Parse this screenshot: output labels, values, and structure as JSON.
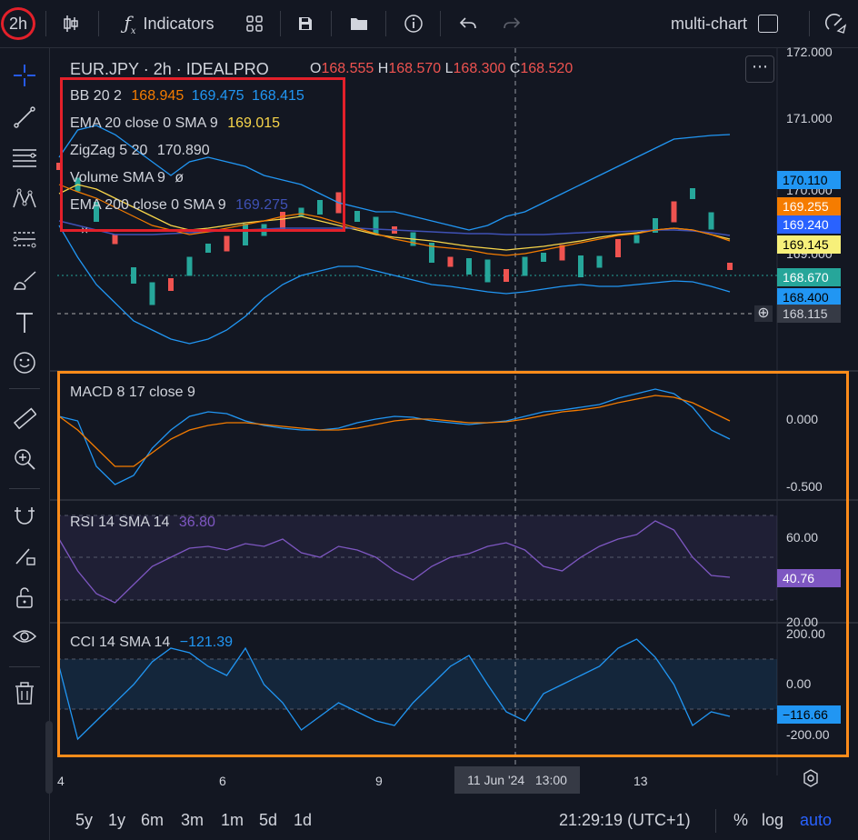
{
  "topbar": {
    "interval": "2h",
    "indicators_label": "Indicators",
    "multichart_label": "multi-chart"
  },
  "main": {
    "symbol_title": "EUR.JPY · 2h · IDEALPRO",
    "ohlc": {
      "o_label": "O",
      "o": "168.555",
      "h_label": "H",
      "h": "168.570",
      "l_label": "L",
      "l": "168.300",
      "c_label": "C",
      "c": "168.520"
    },
    "indicators": {
      "bb": {
        "label": "BB 20 2",
        "v1": "168.945",
        "v2": "169.475",
        "v3": "168.415"
      },
      "ema20": {
        "label": "EMA 20 close 0 SMA 9",
        "v": "169.015"
      },
      "zigzag": {
        "label": "ZigZag 5 20",
        "v": "170.890"
      },
      "volume": {
        "label": "Volume SMA 9",
        "v": "ø"
      },
      "ema200": {
        "label": "EMA 200 close 0 SMA 9",
        "v": "169.275"
      }
    },
    "price_axis": [
      "172.000",
      "171.000",
      "170.000",
      "169.000"
    ],
    "tags": {
      "t1": "170.110",
      "t2": "169.255",
      "t3": "169.240",
      "t4": "169.145",
      "t5": "168.670",
      "t6": "168.400",
      "crosshair": "168.115"
    }
  },
  "macd": {
    "label": "MACD 8 17 close 9",
    "axis": [
      "0.000",
      "-0.500"
    ]
  },
  "rsi": {
    "label": "RSI 14 SMA 14",
    "value": "36.80",
    "axis": [
      "60.00",
      "20.00"
    ],
    "tag": "40.76"
  },
  "cci": {
    "label": "CCI 14 SMA 14",
    "value": "−121.39",
    "axis": [
      "200.00",
      "0.00",
      "-200.00"
    ],
    "tag": "−116.66"
  },
  "time_axis": {
    "labels": [
      "4",
      "6",
      "9",
      "13"
    ],
    "crosshair": "11 Jun '24   13:00"
  },
  "bottombar": {
    "ranges": [
      "5y",
      "1y",
      "6m",
      "3m",
      "1m",
      "5d",
      "1d"
    ],
    "clock": "21:29:19 (UTC+1)",
    "percent": "%",
    "log": "log",
    "auto": "auto"
  },
  "colors": {
    "bg": "#131722",
    "up": "#26a69a",
    "down": "#ef5350",
    "bb": "#2196f3",
    "ema": "#f7d54a",
    "ema200": "#f57c00",
    "rsi": "#7e57c2",
    "cci": "#2196f3",
    "highlight_red": "#e3202a",
    "highlight_orange": "#ff8c1a"
  },
  "chart_data": [
    {
      "type": "line",
      "title": "EUR.JPY · 2h · IDEALPRO",
      "xlabel": "",
      "ylabel": "",
      "x": [
        "4",
        "6",
        "9",
        "11 Jun '24",
        "13"
      ],
      "ylim": [
        167.8,
        172.1
      ],
      "series": [
        {
          "name": "BB 20 2",
          "values": [
            169.2,
            170.3,
            169.8,
            168.6,
            169.9
          ]
        },
        {
          "name": "EMA 20 close 0 SMA 9",
          "values": [
            169.4,
            169.4,
            169.2,
            168.9,
            169.1
          ]
        },
        {
          "name": "EMA 200 close 0 SMA 9",
          "values": [
            169.3,
            169.3,
            169.25,
            169.2,
            169.25
          ]
        }
      ]
    },
    {
      "type": "line",
      "title": "MACD 8 17 close 9",
      "ylim": [
        -0.7,
        0.3
      ],
      "series": [
        {
          "name": "MACD 8 17 close 9",
          "values": [
            0.0,
            0.1,
            -0.05,
            -0.1,
            0.15,
            -0.05
          ]
        }
      ]
    },
    {
      "type": "line",
      "title": "RSI 14 SMA 14",
      "ylim": [
        20,
        70
      ],
      "series": [
        {
          "name": "RSI 14 SMA 14",
          "values": [
            55,
            30,
            60,
            56,
            42,
            58,
            40,
            63,
            40
          ]
        }
      ]
    },
    {
      "type": "line",
      "title": "CCI 14 SMA 14",
      "ylim": [
        -220,
        210
      ],
      "series": [
        {
          "name": "CCI 14 SMA 14",
          "values": [
            100,
            -250,
            150,
            170,
            -150,
            100,
            -100,
            200,
            -200,
            -116
          ]
        }
      ]
    }
  ]
}
